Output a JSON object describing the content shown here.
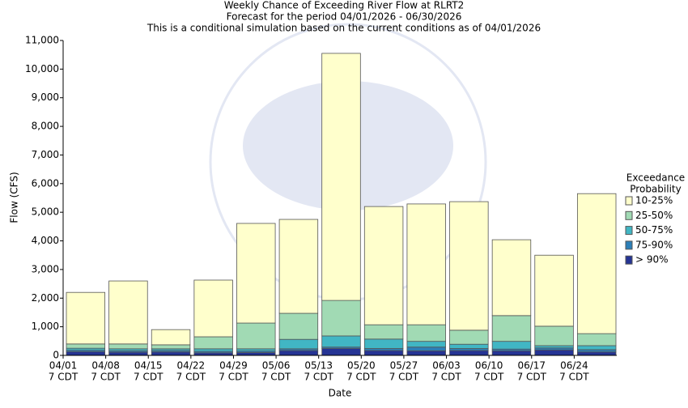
{
  "chart_data": {
    "type": "bar",
    "stacked": true,
    "title": [
      "Weekly Chance of Exceeding River Flow at RLRT2",
      "Forecast for the period 04/01/2026 - 06/30/2026",
      "This is a conditional simulation based on the current conditions as of 04/01/2026"
    ],
    "x_label": "Date",
    "y_label": "Flow (CFS)",
    "legend_title": [
      "Exceedance",
      "Probability"
    ],
    "categories": [
      [
        "04/01",
        "7 CDT"
      ],
      [
        "04/08",
        "7 CDT"
      ],
      [
        "04/15",
        "7 CDT"
      ],
      [
        "04/22",
        "7 CDT"
      ],
      [
        "04/29",
        "7 CDT"
      ],
      [
        "05/06",
        "7 CDT"
      ],
      [
        "05/13",
        "7 CDT"
      ],
      [
        "05/20",
        "7 CDT"
      ],
      [
        "05/27",
        "7 CDT"
      ],
      [
        "06/03",
        "7 CDT"
      ],
      [
        "06/10",
        "7 CDT"
      ],
      [
        "06/17",
        "7 CDT"
      ],
      [
        "06/24",
        "7 CDT"
      ]
    ],
    "series": [
      {
        "name": "> 90%",
        "color": "#253494",
        "values": [
          130,
          110,
          120,
          90,
          100,
          170,
          240,
          170,
          160,
          170,
          160,
          190,
          120
        ]
      },
      {
        "name": "75-90%",
        "color": "#2c7fb8",
        "values": [
          50,
          50,
          50,
          50,
          50,
          60,
          50,
          70,
          130,
          70,
          60,
          70,
          80
        ]
      },
      {
        "name": "50-75%",
        "color": "#41b6c4",
        "values": [
          70,
          70,
          60,
          90,
          80,
          330,
          390,
          330,
          200,
          150,
          270,
          80,
          140
        ]
      },
      {
        "name": "25-50%",
        "color": "#a1dab4",
        "values": [
          150,
          170,
          140,
          420,
          900,
          910,
          1240,
          500,
          580,
          490,
          900,
          680,
          420
        ]
      },
      {
        "name": "10-25%",
        "color": "#ffffcc",
        "values": [
          1800,
          2200,
          530,
          1980,
          3480,
          3280,
          8630,
          4130,
          4220,
          4490,
          2650,
          2480,
          4890
        ]
      }
    ],
    "ylim": [
      0,
      11000
    ],
    "yticks": [
      0,
      {
        "value": 1000,
        "label": "1,000"
      },
      {
        "value": 2000,
        "label": "2,000"
      },
      {
        "value": 3000,
        "label": "3,000"
      },
      {
        "value": 4000,
        "label": "4,000"
      },
      {
        "value": 5000,
        "label": "5,000"
      },
      {
        "value": 6000,
        "label": "6,000"
      },
      {
        "value": 7000,
        "label": "7,000"
      },
      {
        "value": 8000,
        "label": "8,000"
      },
      {
        "value": 9000,
        "label": "9,000"
      },
      {
        "value": 10000,
        "label": "10,000"
      },
      {
        "value": 11000,
        "label": "11,000"
      }
    ],
    "grid": false,
    "legend": "right"
  }
}
